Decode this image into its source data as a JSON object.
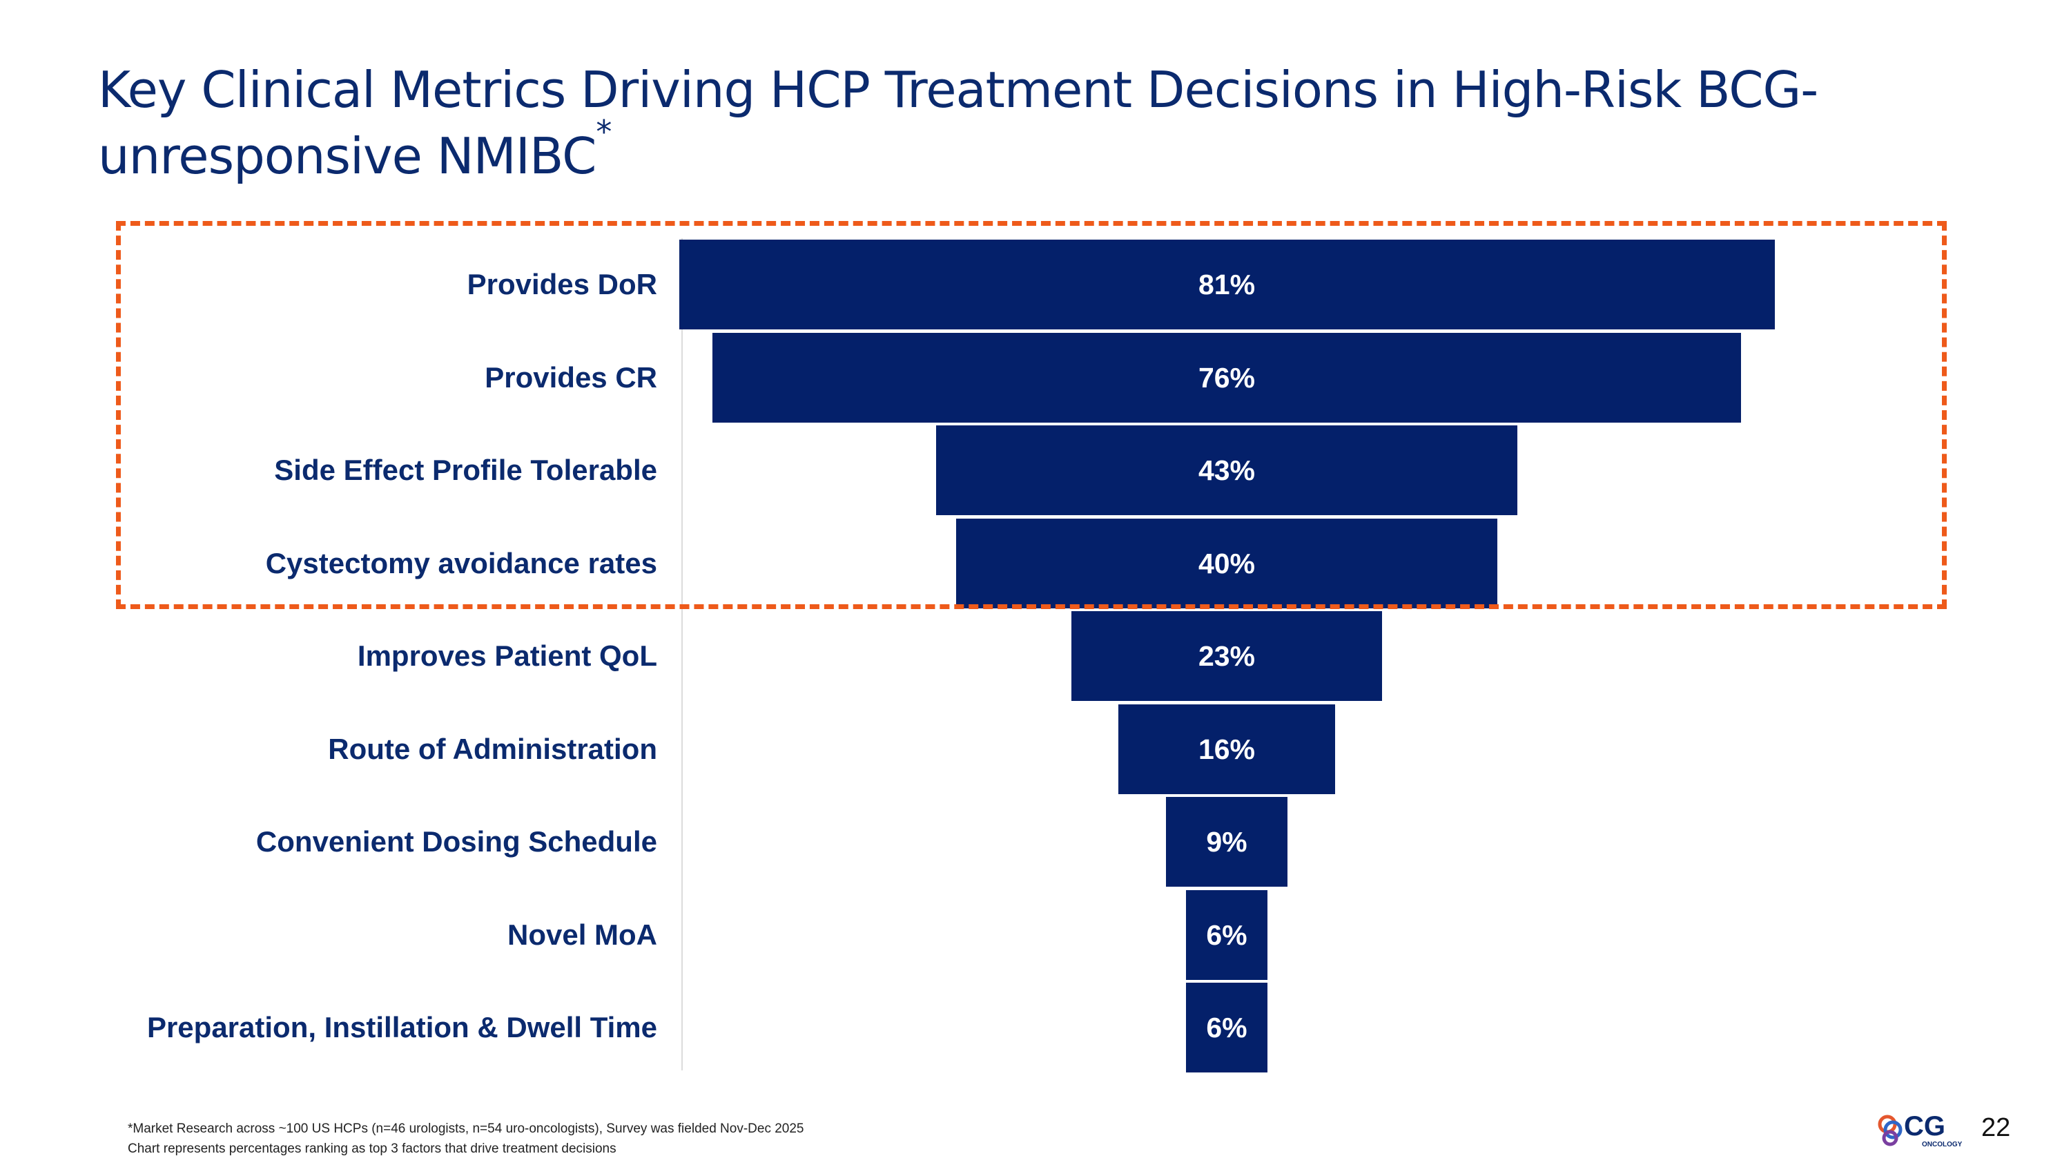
{
  "slide": {
    "title_main": "Key Clinical Metrics Driving HCP Treatment Decisions in High-Risk BCG-unresponsive NMIBC",
    "title_sup": "*",
    "footnote_line1": "*Market Research across ~100 US HCPs (n=46 urologists, n=54 uro-oncologists), Survey was fielded Nov-Dec 2025",
    "footnote_line2": "Chart represents percentages ranking as top 3 factors that drive treatment decisions",
    "page_number": "22",
    "logo_text": "CG",
    "logo_subtext": "ONCOLOGY"
  },
  "colors": {
    "bar": "#04206a",
    "label": "#0b2a6e",
    "highlight": "#ee5a1a"
  },
  "chart_data": {
    "type": "bar",
    "orientation": "horizontal-centered-funnel",
    "title": "Key Clinical Metrics Driving HCP Treatment Decisions in High-Risk BCG-unresponsive NMIBC",
    "categories": [
      "Provides DoR",
      "Provides CR",
      "Side Effect Profile Tolerable",
      "Cystectomy avoidance rates",
      "Improves Patient QoL",
      "Route of Administration",
      "Convenient Dosing Schedule",
      "Novel MoA",
      "Preparation, Instillation & Dwell Time"
    ],
    "values": [
      81,
      76,
      43,
      40,
      23,
      16,
      9,
      6,
      6
    ],
    "data_labels": [
      "81%",
      "76%",
      "43%",
      "40%",
      "23%",
      "16%",
      "9%",
      "6%",
      "6%"
    ],
    "unit": "%",
    "highlighted_categories": [
      0,
      1,
      2,
      3
    ],
    "xlim": [
      0,
      100
    ]
  }
}
